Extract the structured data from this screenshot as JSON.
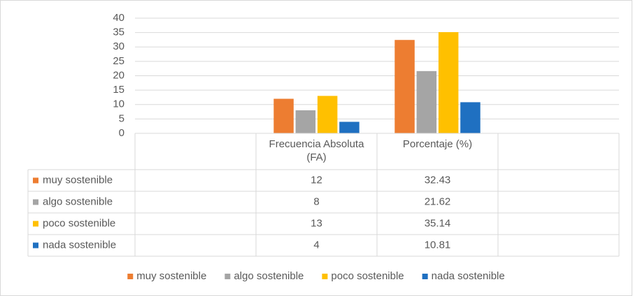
{
  "chart_data": {
    "type": "bar",
    "categories": [
      null,
      "Frecuencia Absoluta (FA)",
      "Porcentaje (%)",
      null
    ],
    "series": [
      {
        "name": "muy sostenible",
        "color": "#ed7d31",
        "values": [
          null,
          12,
          32.43,
          null
        ]
      },
      {
        "name": "algo sostenible",
        "color": "#a5a5a5",
        "values": [
          null,
          8,
          21.62,
          null
        ]
      },
      {
        "name": "poco sostenible",
        "color": "#ffc000",
        "values": [
          null,
          13,
          35.14,
          null
        ]
      },
      {
        "name": "nada sostenible",
        "color": "#1f70c1",
        "values": [
          null,
          4,
          10.81,
          null
        ]
      }
    ],
    "ylim": [
      0,
      40
    ],
    "yticks": [
      0,
      5,
      10,
      15,
      20,
      25,
      30,
      35,
      40
    ],
    "grid": true,
    "legend": "bottom",
    "data_table": true
  }
}
